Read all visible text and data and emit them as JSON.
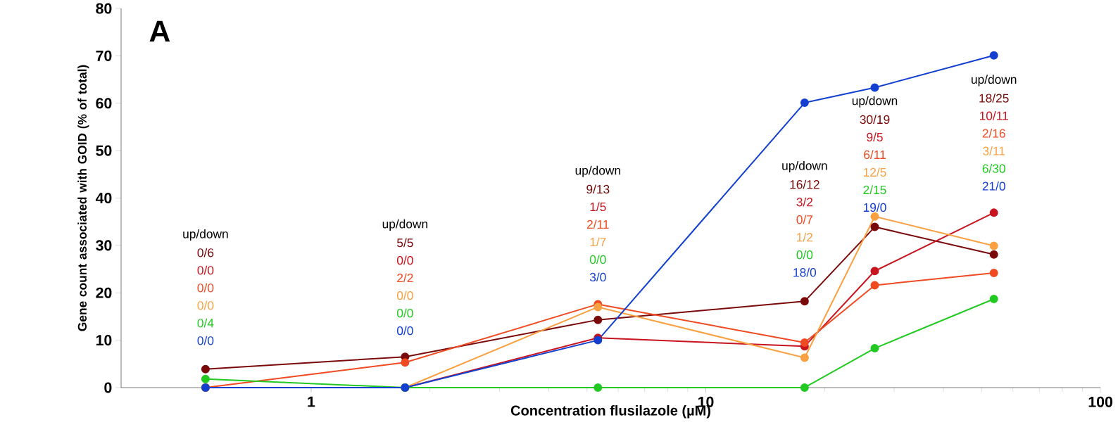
{
  "chart_data": {
    "type": "line",
    "xlabel": "Concentration flusilazole (µM)",
    "ylabel": "Gene count associated with GOID (% of total)",
    "x": [
      0.54,
      1.73,
      5.33,
      17.8,
      26.8,
      53.7
    ],
    "series": [
      {
        "color": "#7a0a0a",
        "values": [
          3.9,
          6.5,
          14.3,
          18.2,
          33.9,
          28.1
        ]
      },
      {
        "color": "#c8141e",
        "values": [
          0,
          0,
          10.5,
          8.7,
          24.6,
          36.9
        ]
      },
      {
        "color": "#f04a23",
        "values": [
          0,
          5.3,
          17.6,
          9.5,
          21.6,
          24.2
        ]
      },
      {
        "color": "#f9a142",
        "values": [
          0,
          0,
          17.0,
          6.3,
          36.1,
          29.9
        ]
      },
      {
        "color": "#22c922",
        "values": [
          1.8,
          0,
          0,
          0,
          8.3,
          18.7
        ]
      },
      {
        "color": "#1440d0",
        "values": [
          0,
          0,
          10.0,
          60.1,
          63.3,
          70.1
        ]
      }
    ],
    "log": "x",
    "xlim": [
      0.33,
      100
    ],
    "xticks": [
      1,
      10,
      100
    ],
    "ylim": [
      0,
      80
    ],
    "yticks": [
      0,
      10,
      20,
      30,
      40,
      50,
      60,
      70,
      80
    ],
    "grid": false,
    "marker": "circle",
    "line_style": "solid",
    "annotations": [
      "A",
      "up/down",
      "0/6",
      "0/0",
      "0/0",
      "0/0",
      "0/4",
      "0/0",
      "up/down",
      "5/5",
      "0/0",
      "2/2",
      "0/0",
      "0/0",
      "0/0",
      "up/down",
      "9/13",
      "1/5",
      "2/11",
      "1/7",
      "0/0",
      "3/0",
      "up/down",
      "16/12",
      "3/2",
      "0/7",
      "1/2",
      "0/0",
      "18/0",
      "up/down",
      "30/19",
      "9/5",
      "6/11",
      "12/5",
      "2/15",
      "19/0",
      "up/down",
      "18/25",
      "10/11",
      "2/16",
      "3/11",
      "6/30",
      "21/0"
    ]
  }
}
